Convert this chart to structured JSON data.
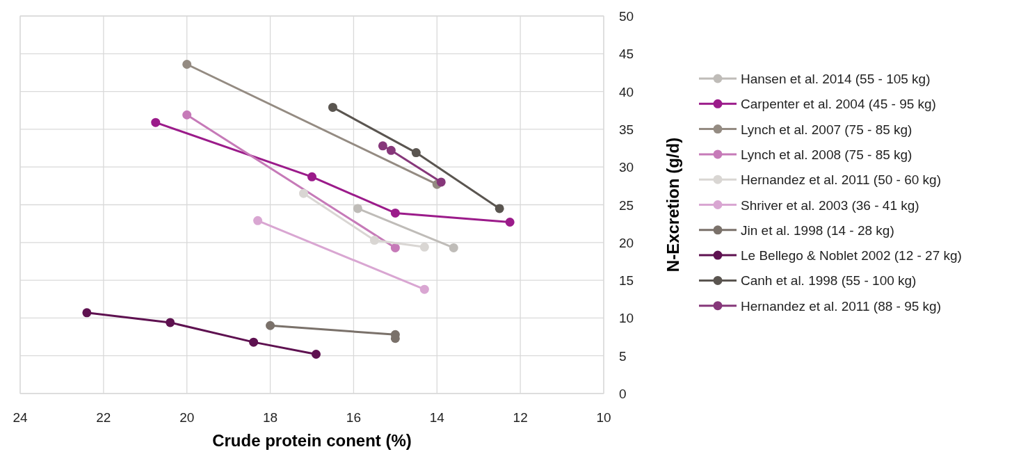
{
  "chart_data": {
    "type": "line",
    "xlabel": "Crude protein conent (%)",
    "ylabel": "N-Excretion (g/d)",
    "xlim": [
      24,
      10
    ],
    "xticks": [
      24,
      22,
      20,
      18,
      16,
      14,
      12,
      10
    ],
    "ylim": [
      0,
      50
    ],
    "yticks": [
      0,
      5,
      10,
      15,
      20,
      25,
      30,
      35,
      40,
      45,
      50
    ],
    "grid": true,
    "legend": "right",
    "marker": "circle",
    "line_style": "solid",
    "series": [
      {
        "name": "Hansen et al. 2014 (55 - 105 kg)",
        "color": "#bfbcb8",
        "x": [
          15.9,
          13.6
        ],
        "values": [
          24.5,
          19.3
        ]
      },
      {
        "name": "Carpenter et al. 2004 (45 - 95 kg)",
        "color": "#9b1b8a",
        "x": [
          20.75,
          17,
          15,
          12.25
        ],
        "values": [
          35.9,
          28.7,
          23.9,
          22.7
        ]
      },
      {
        "name": "Lynch et al. 2007 (75 - 85 kg)",
        "color": "#948b82",
        "x": [
          20,
          14
        ],
        "values": [
          43.6,
          27.7
        ]
      },
      {
        "name": "Lynch et al. 2008 (75 - 85 kg)",
        "color": "#c67ab8",
        "x": [
          20,
          15
        ],
        "values": [
          36.9,
          19.3
        ]
      },
      {
        "name": "Hernandez et al. 2011 (50 - 60 kg)",
        "color": "#d9d6d3",
        "x": [
          17.2,
          15.5,
          14.3
        ],
        "values": [
          26.5,
          20.3,
          19.4
        ]
      },
      {
        "name": "Shriver et al. 2003 (36 - 41 kg)",
        "color": "#d9a6d2",
        "x": [
          18.3,
          14.3
        ],
        "values": [
          22.9,
          13.8
        ]
      },
      {
        "name": "Jin et al. 1998 (14 - 28 kg)",
        "color": "#7a716a",
        "x": [
          18,
          15,
          15
        ],
        "values": [
          9.0,
          7.8,
          7.3
        ]
      },
      {
        "name": "Le Bellego & Noblet 2002 (12 - 27 kg)",
        "color": "#5e1150",
        "x": [
          22.4,
          20.4,
          18.4,
          16.9
        ],
        "values": [
          10.7,
          9.4,
          6.8,
          5.2
        ]
      },
      {
        "name": "Canh et al. 1998 (55 - 100 kg)",
        "color": "#5a5550",
        "x": [
          16.5,
          14.5,
          12.5
        ],
        "values": [
          37.9,
          31.9,
          24.5
        ]
      },
      {
        "name": "Hernandez et al. 2011 (88 - 95 kg)",
        "color": "#86377a",
        "x": [
          15.3,
          15.1,
          13.9
        ],
        "values": [
          32.8,
          32.2,
          28.0
        ]
      }
    ]
  }
}
